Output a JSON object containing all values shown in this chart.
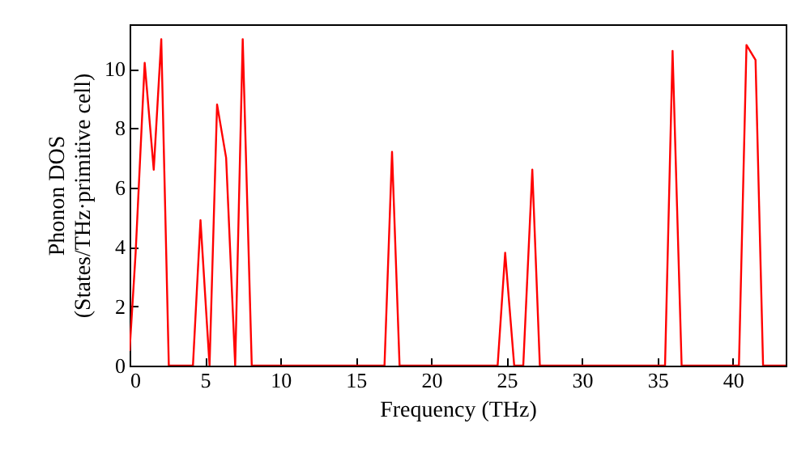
{
  "chart_data": {
    "type": "line",
    "xlabel": "Frequency (THz)",
    "ylabel": "Phonon DOS\n(States/THz·primitive cell)",
    "x": [
      0,
      0.4,
      1.0,
      1.6,
      2.1,
      2.6,
      4.2,
      4.7,
      5.3,
      5.8,
      6.4,
      7.0,
      7.5,
      8.1,
      16.9,
      17.4,
      17.9,
      24.4,
      24.9,
      25.5,
      26.1,
      26.7,
      27.2,
      35.5,
      36.0,
      36.6,
      40.4,
      40.9,
      41.5,
      42.0,
      43.5
    ],
    "series": [
      {
        "color": "#ff0000",
        "values": [
          0.5,
          3.8,
          10.2,
          6.6,
          11.0,
          0,
          0,
          4.9,
          0,
          8.8,
          7.0,
          0,
          11.0,
          0,
          0,
          7.2,
          0,
          0,
          3.8,
          0,
          0,
          6.6,
          0,
          0,
          10.6,
          0,
          0,
          10.8,
          10.3,
          0,
          0
        ]
      }
    ],
    "xlim": [
      0,
      43.5
    ],
    "ylim": [
      0,
      11.5
    ],
    "xticks": [
      0,
      5,
      10,
      15,
      20,
      25,
      30,
      35,
      40
    ],
    "yticks": [
      0,
      2,
      4,
      6,
      8,
      10
    ],
    "line_style": "solid"
  }
}
